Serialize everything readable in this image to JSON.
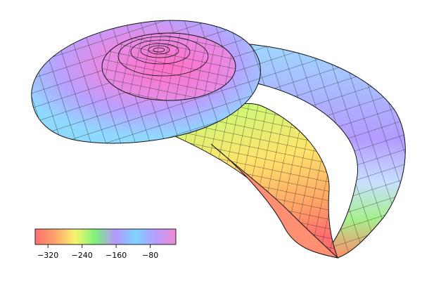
{
  "chart_data": {
    "type": "surface",
    "title": "",
    "colormap": "rainbow-pastel",
    "colorbar": {
      "vmin": -350,
      "vmax": -20,
      "ticks": [
        -320,
        -240,
        -160,
        -80
      ],
      "tick_labels": [
        "−320",
        "−240",
        "−160",
        "−80"
      ],
      "stops": [
        "#ff6f6f",
        "#ffa46b",
        "#f6f56f",
        "#7cf27c",
        "#b596ff",
        "#7dd3ff",
        "#b79cff",
        "#ee8ad4"
      ],
      "placement": "bottom-left",
      "orientation": "horizontal"
    },
    "surface": {
      "shape": "nautilus-shell",
      "mesh": "visible",
      "background": "#ffffff"
    }
  }
}
